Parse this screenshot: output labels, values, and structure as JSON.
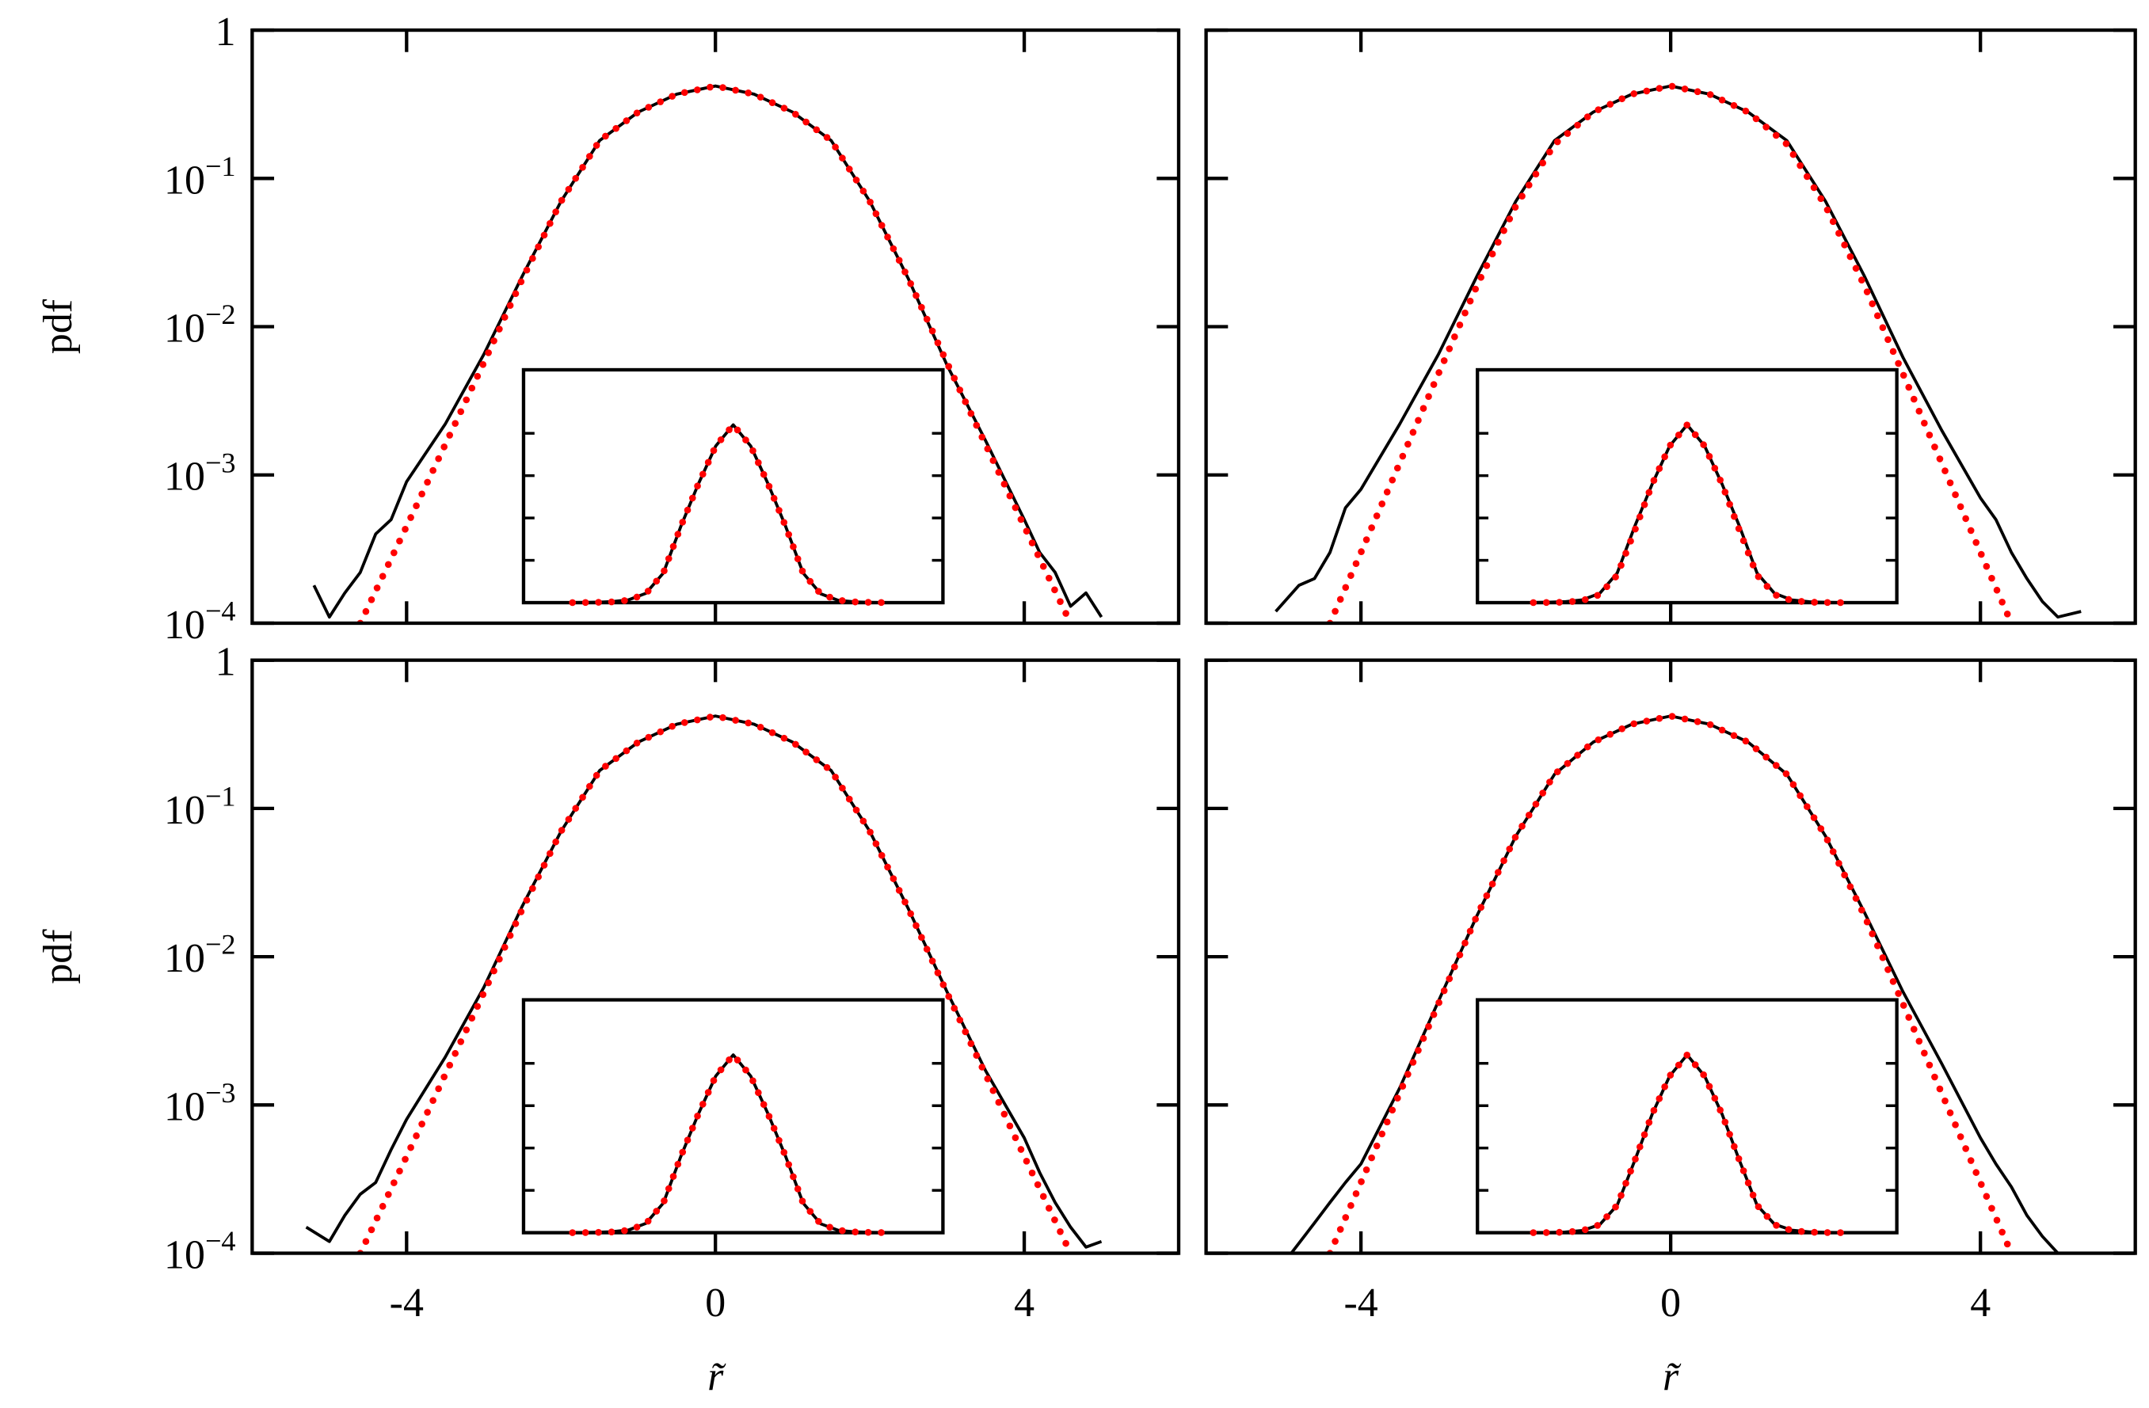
{
  "chart_data": [
    {
      "type": "line",
      "ylabel": "pdf",
      "ytick_labels": true,
      "xtick_labels": false,
      "log_y": true,
      "xlim": [
        -6,
        6
      ],
      "ylim": [
        0.0001,
        1
      ],
      "xticks": [
        -4,
        0,
        4
      ],
      "yticks": [
        1,
        {
          "value": 0.1,
          "label": "10",
          "exponent": "−1"
        },
        {
          "value": 0.01,
          "label": "10",
          "exponent": "−2"
        },
        {
          "value": 0.001,
          "label": "10",
          "exponent": "−3"
        },
        {
          "value": 0.0001,
          "label": "10",
          "exponent": "−4"
        }
      ],
      "series": [
        {
          "color": "#000000",
          "style": "solid",
          "x": [
            -5.2,
            -5,
            -4.8,
            -4.6,
            -4.4,
            -4.2,
            -4,
            -3.5,
            -3,
            -2.5,
            -2,
            -1.5,
            -1,
            -0.5,
            0,
            0.5,
            1,
            1.5,
            2,
            2.5,
            3,
            3.5,
            4,
            4.2,
            4.4,
            4.6,
            4.8,
            5
          ],
          "values": [
            0.00018,
            0.00011,
            0.00016,
            0.00022,
            0.0004,
            0.0005,
            0.0009,
            0.0022,
            0.0065,
            0.022,
            0.07,
            0.18,
            0.28,
            0.37,
            0.42,
            0.37,
            0.28,
            0.18,
            0.07,
            0.021,
            0.0055,
            0.0017,
            0.0005,
            0.0003,
            0.00022,
            0.00013,
            0.00016,
            0.00011
          ]
        },
        {
          "color": "#ff0000",
          "style": "dotted",
          "x": [
            -4.6,
            -4,
            -3.5,
            -3,
            -2.5,
            -2,
            -1.5,
            -1,
            -0.5,
            0,
            0.5,
            1,
            1.5,
            2,
            2.5,
            3,
            3.5,
            4,
            4.6
          ],
          "values": [
            0.0001,
            0.00045,
            0.0016,
            0.0057,
            0.021,
            0.07,
            0.18,
            0.28,
            0.37,
            0.42,
            0.37,
            0.28,
            0.18,
            0.07,
            0.021,
            0.0057,
            0.0016,
            0.00045,
            0.0001
          ]
        }
      ],
      "inset": {
        "xlim": [
          -6,
          6
        ],
        "ylim": [
          0,
          0.55
        ],
        "yticks": [
          0.1,
          0.2,
          0.3,
          0.4
        ]
      }
    },
    {
      "type": "line",
      "ytick_labels": false,
      "xtick_labels": false,
      "log_y": true,
      "xlim": [
        -6,
        6
      ],
      "ylim": [
        0.0001,
        1
      ],
      "xticks": [
        -4,
        0,
        4
      ],
      "yticks": [
        1,
        0.1,
        0.01,
        0.001,
        0.0001
      ],
      "series": [
        {
          "color": "#000000",
          "style": "solid",
          "x": [
            -5.1,
            -4.8,
            -4.6,
            -4.4,
            -4.2,
            -4,
            -3.5,
            -3,
            -2.5,
            -2,
            -1.5,
            -1,
            -0.5,
            0,
            0.5,
            1,
            1.5,
            2,
            2.5,
            3,
            3.5,
            4,
            4.2,
            4.4,
            4.6,
            4.8,
            5,
            5.3
          ],
          "values": [
            0.00012,
            0.00018,
            0.0002,
            0.0003,
            0.0006,
            0.0008,
            0.0022,
            0.0065,
            0.022,
            0.07,
            0.18,
            0.28,
            0.37,
            0.42,
            0.37,
            0.28,
            0.18,
            0.07,
            0.022,
            0.0062,
            0.002,
            0.0007,
            0.0005,
            0.0003,
            0.0002,
            0.00014,
            0.00011,
            0.00012
          ]
        },
        {
          "color": "#ff0000",
          "style": "dotted",
          "x": [
            -4.4,
            -4,
            -3.5,
            -3,
            -2.5,
            -2,
            -1.5,
            -1,
            -0.5,
            0,
            0.5,
            1,
            1.5,
            2,
            2.5,
            3,
            3.5,
            4,
            4.4
          ],
          "values": [
            0.0001,
            0.0003,
            0.0012,
            0.0048,
            0.019,
            0.065,
            0.17,
            0.28,
            0.37,
            0.42,
            0.37,
            0.28,
            0.17,
            0.065,
            0.019,
            0.0048,
            0.0012,
            0.0003,
            0.0001
          ]
        }
      ],
      "inset": {
        "xlim": [
          -6,
          6
        ],
        "ylim": [
          0,
          0.55
        ],
        "yticks": [
          0.1,
          0.2,
          0.3,
          0.4
        ]
      }
    },
    {
      "type": "line",
      "ylabel": "pdf",
      "xlabel": "r̃",
      "ytick_labels": true,
      "xtick_labels": true,
      "log_y": true,
      "xlim": [
        -6,
        6
      ],
      "ylim": [
        0.0001,
        1
      ],
      "xticks": [
        -4,
        0,
        4
      ],
      "yticks": [
        1,
        {
          "value": 0.1,
          "label": "10",
          "exponent": "−1"
        },
        {
          "value": 0.01,
          "label": "10",
          "exponent": "−2"
        },
        {
          "value": 0.001,
          "label": "10",
          "exponent": "−3"
        },
        {
          "value": 0.0001,
          "label": "10",
          "exponent": "−4"
        }
      ],
      "series": [
        {
          "color": "#000000",
          "style": "solid",
          "x": [
            -5.3,
            -5,
            -4.8,
            -4.6,
            -4.4,
            -4.2,
            -4,
            -3.5,
            -3,
            -2.5,
            -2,
            -1.5,
            -1,
            -0.5,
            0,
            0.5,
            1,
            1.5,
            2,
            2.5,
            3,
            3.5,
            4,
            4.2,
            4.4,
            4.6,
            4.8,
            5
          ],
          "values": [
            0.00015,
            0.00012,
            0.00018,
            0.00025,
            0.0003,
            0.0005,
            0.0008,
            0.0021,
            0.0062,
            0.022,
            0.07,
            0.18,
            0.28,
            0.37,
            0.42,
            0.37,
            0.28,
            0.18,
            0.07,
            0.021,
            0.0058,
            0.0017,
            0.0006,
            0.00035,
            0.00022,
            0.00015,
            0.00011,
            0.00012
          ]
        },
        {
          "color": "#ff0000",
          "style": "dotted",
          "x": [
            -4.6,
            -4,
            -3.5,
            -3,
            -2.5,
            -2,
            -1.5,
            -1,
            -0.5,
            0,
            0.5,
            1,
            1.5,
            2,
            2.5,
            3,
            3.5,
            4,
            4.6
          ],
          "values": [
            0.0001,
            0.00045,
            0.0016,
            0.0057,
            0.021,
            0.07,
            0.18,
            0.28,
            0.37,
            0.42,
            0.37,
            0.28,
            0.18,
            0.07,
            0.021,
            0.0057,
            0.0016,
            0.00045,
            0.0001
          ]
        }
      ],
      "inset": {
        "xlim": [
          -6,
          6
        ],
        "ylim": [
          0,
          0.55
        ],
        "yticks": [
          0.1,
          0.2,
          0.3,
          0.4
        ]
      }
    },
    {
      "type": "line",
      "xlabel": "r̃",
      "ytick_labels": false,
      "xtick_labels": true,
      "log_y": true,
      "xlim": [
        -6,
        6
      ],
      "ylim": [
        0.0001,
        1
      ],
      "xticks": [
        -4,
        0,
        4
      ],
      "yticks": [
        1,
        0.1,
        0.01,
        0.001,
        0.0001
      ],
      "series": [
        {
          "color": "#000000",
          "style": "solid",
          "x": [
            -4.9,
            -4.6,
            -4.4,
            -4.2,
            -4,
            -3.5,
            -3,
            -2.5,
            -2,
            -1.5,
            -1,
            -0.5,
            0,
            0.5,
            1,
            1.5,
            2,
            2.5,
            3,
            3.5,
            4,
            4.2,
            4.4,
            4.6,
            4.8,
            5
          ],
          "values": [
            0.0001,
            0.00016,
            0.00022,
            0.0003,
            0.0004,
            0.0013,
            0.005,
            0.019,
            0.065,
            0.17,
            0.28,
            0.37,
            0.42,
            0.37,
            0.28,
            0.17,
            0.065,
            0.02,
            0.0058,
            0.0019,
            0.0006,
            0.0004,
            0.00028,
            0.00018,
            0.00013,
            0.0001
          ]
        },
        {
          "color": "#ff0000",
          "style": "dotted",
          "x": [
            -4.4,
            -4,
            -3.5,
            -3,
            -2.5,
            -2,
            -1.5,
            -1,
            -0.5,
            0,
            0.5,
            1,
            1.5,
            2,
            2.5,
            3,
            3.5,
            4,
            4.4
          ],
          "values": [
            0.0001,
            0.0003,
            0.0012,
            0.0048,
            0.019,
            0.065,
            0.17,
            0.28,
            0.37,
            0.42,
            0.37,
            0.28,
            0.17,
            0.065,
            0.019,
            0.0048,
            0.0012,
            0.0003,
            0.0001
          ]
        }
      ],
      "inset": {
        "xlim": [
          -6,
          6
        ],
        "ylim": [
          0,
          0.55
        ],
        "yticks": [
          0.1,
          0.2,
          0.3,
          0.4
        ]
      }
    }
  ]
}
